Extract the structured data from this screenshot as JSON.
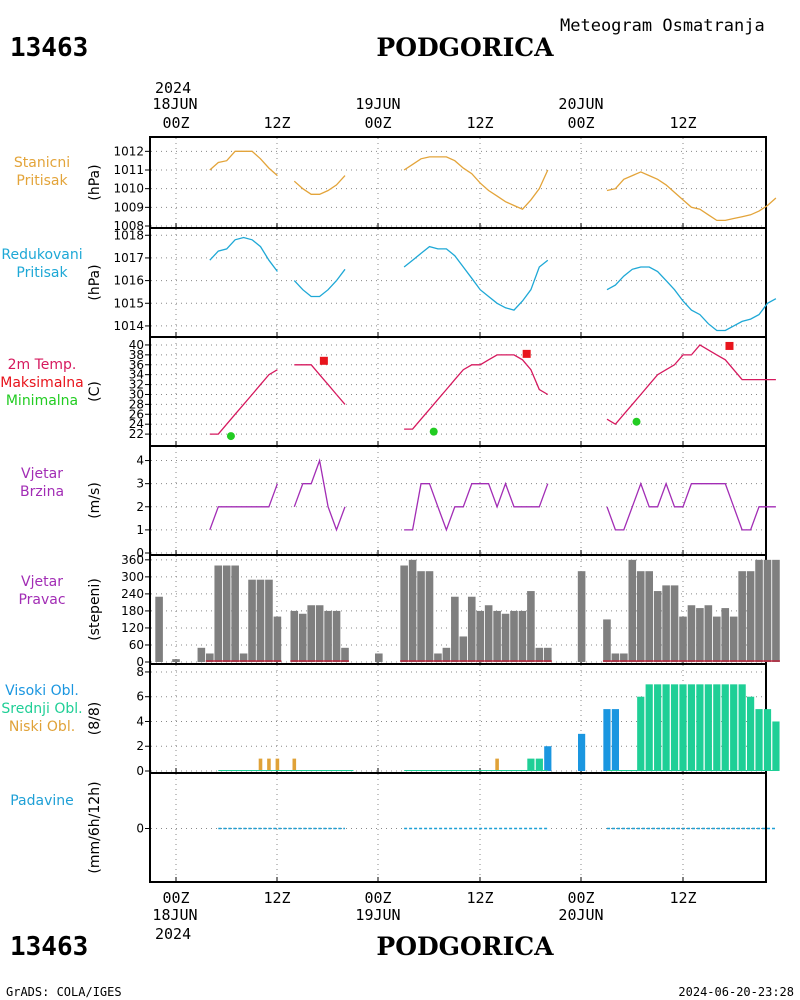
{
  "header": {
    "station_id": "13463",
    "city": "PODGORICA",
    "subtitle": "Meteogram Osmatranja",
    "year": "2024"
  },
  "time_axis": {
    "ticks": [
      "00Z",
      "12Z",
      "00Z",
      "12Z",
      "00Z",
      "12Z"
    ],
    "days": [
      "18JUN",
      "19JUN",
      "20JUN"
    ]
  },
  "footer": {
    "source": "GrADS: COLA/IGES",
    "timestamp": "2024-06-20-23:28"
  },
  "colors": {
    "pressure": "#e3a43a",
    "reduced": "#1ea8d6",
    "temp": "#d6195e",
    "tmax": "#e8141c",
    "tmin": "#22cc22",
    "wind": "#a22db5",
    "bar": "#7f7f7f",
    "cloud_high": "#1a96e0",
    "cloud_mid": "#1fcf96",
    "cloud_low": "#e0a238",
    "precip": "#1fa0d6"
  },
  "chart_data": [
    {
      "id": "station_pressure",
      "type": "line",
      "label_lines": [
        "Stanicni",
        "Pritisak"
      ],
      "unit": "(hPa)",
      "ylim": [
        1008,
        1012.5
      ],
      "yticks": [
        1008,
        1009,
        1010,
        1011,
        1012
      ],
      "segments": [
        {
          "x": [
            4,
            5,
            6,
            7,
            8,
            9,
            10,
            11,
            12
          ],
          "y": [
            1011.0,
            1011.4,
            1011.5,
            1012.0,
            1012.0,
            1012.0,
            1011.6,
            1011.1,
            1010.7
          ]
        },
        {
          "x": [
            14,
            15,
            16,
            17,
            18,
            19,
            20
          ],
          "y": [
            1010.4,
            1010.0,
            1009.7,
            1009.7,
            1009.9,
            1010.2,
            1010.7
          ]
        },
        {
          "x": [
            27,
            28,
            29,
            30,
            31,
            32,
            33,
            34,
            35,
            36,
            37,
            38,
            39,
            40,
            41,
            42,
            43,
            44
          ],
          "y": [
            1011.0,
            1011.3,
            1011.6,
            1011.7,
            1011.7,
            1011.7,
            1011.5,
            1011.1,
            1010.8,
            1010.3,
            1009.9,
            1009.6,
            1009.3,
            1009.1,
            1008.9,
            1009.4,
            1010.0,
            1011.0
          ]
        },
        {
          "x": [
            51,
            52,
            53,
            54,
            55,
            56,
            57,
            58,
            59,
            60,
            61,
            62,
            63,
            64,
            65,
            66,
            67,
            68,
            69,
            70,
            71
          ],
          "y": [
            1009.9,
            1010.0,
            1010.5,
            1010.7,
            1010.9,
            1010.7,
            1010.5,
            1010.2,
            1009.8,
            1009.4,
            1009.0,
            1008.9,
            1008.6,
            1008.3,
            1008.3,
            1008.4,
            1008.5,
            1008.6,
            1008.8,
            1009.1,
            1009.5
          ]
        }
      ]
    },
    {
      "id": "reduced_pressure",
      "type": "line",
      "label_lines": [
        "Redukovani",
        "Pritisak"
      ],
      "unit": "(hPa)",
      "ylim": [
        1013.6,
        1018.1
      ],
      "yticks": [
        1014,
        1015,
        1016,
        1017,
        1018
      ],
      "segments": [
        {
          "x": [
            4,
            5,
            6,
            7,
            8,
            9,
            10,
            11,
            12
          ],
          "y": [
            1016.9,
            1017.3,
            1017.4,
            1017.8,
            1017.9,
            1017.8,
            1017.5,
            1016.9,
            1016.4
          ]
        },
        {
          "x": [
            14,
            15,
            16,
            17,
            18,
            19,
            20
          ],
          "y": [
            1016.0,
            1015.6,
            1015.3,
            1015.3,
            1015.6,
            1016.0,
            1016.5
          ]
        },
        {
          "x": [
            27,
            28,
            29,
            30,
            31,
            32,
            33,
            34,
            35,
            36,
            37,
            38,
            39,
            40,
            41,
            42,
            43,
            44
          ],
          "y": [
            1016.6,
            1016.9,
            1017.2,
            1017.5,
            1017.4,
            1017.4,
            1017.1,
            1016.6,
            1016.1,
            1015.6,
            1015.3,
            1015.0,
            1014.8,
            1014.7,
            1015.1,
            1015.6,
            1016.6,
            1016.9
          ]
        },
        {
          "x": [
            51,
            52,
            53,
            54,
            55,
            56,
            57,
            58,
            59,
            60,
            61,
            62,
            63,
            64,
            65,
            66,
            67,
            68,
            69,
            70,
            71
          ],
          "y": [
            1015.6,
            1015.8,
            1016.2,
            1016.5,
            1016.6,
            1016.6,
            1016.4,
            1016.0,
            1015.6,
            1015.1,
            1014.7,
            1014.5,
            1014.1,
            1013.8,
            1013.8,
            1014.0,
            1014.2,
            1014.3,
            1014.5,
            1015.0,
            1015.2
          ]
        }
      ]
    },
    {
      "id": "temperature",
      "type": "line",
      "label_lines": [
        "2m Temp.",
        "Maksimalna",
        "Minimalna"
      ],
      "unit": "(C)",
      "ylim": [
        20,
        41
      ],
      "yticks": [
        22,
        24,
        26,
        28,
        30,
        32,
        34,
        36,
        38,
        40
      ],
      "segments": [
        {
          "x": [
            4,
            5,
            6,
            7,
            8,
            9,
            10,
            11,
            12
          ],
          "y": [
            22,
            22,
            24,
            26,
            28,
            30,
            32,
            34,
            35
          ]
        },
        {
          "x": [
            14,
            15,
            16,
            17,
            18,
            19,
            20
          ],
          "y": [
            36,
            36,
            36,
            34,
            32,
            30,
            28
          ]
        },
        {
          "x": [
            27,
            28,
            29,
            30,
            31,
            32,
            33,
            34,
            35,
            36,
            37,
            38,
            39,
            40,
            41,
            42,
            43,
            44
          ],
          "y": [
            23,
            23,
            25,
            27,
            29,
            31,
            33,
            35,
            36,
            36,
            37,
            38,
            38,
            38,
            37,
            35,
            31,
            30
          ]
        },
        {
          "x": [
            51,
            52,
            53,
            54,
            55,
            56,
            57,
            58,
            59,
            60,
            61,
            62,
            63,
            64,
            65,
            66,
            67,
            68,
            69,
            70,
            71
          ],
          "y": [
            25,
            24,
            26,
            28,
            30,
            32,
            34,
            35,
            36,
            38,
            38,
            40,
            39,
            38,
            37,
            35,
            33,
            33,
            33,
            33,
            33
          ]
        }
      ],
      "max_points": [
        {
          "x": 17.5,
          "y": 36.8
        },
        {
          "x": 41.5,
          "y": 38.2
        },
        {
          "x": 65.5,
          "y": 39.8
        }
      ],
      "min_points": [
        {
          "x": 6.5,
          "y": 21.6
        },
        {
          "x": 30.5,
          "y": 22.5
        },
        {
          "x": 54.5,
          "y": 24.5
        }
      ]
    },
    {
      "id": "wind_speed",
      "type": "line",
      "label_lines": [
        "Vjetar",
        "Brzina"
      ],
      "unit": "(m/s)",
      "ylim": [
        0,
        4.5
      ],
      "yticks": [
        0,
        1,
        2,
        3,
        4
      ],
      "segments": [
        {
          "x": [
            4,
            5,
            6,
            7,
            8,
            9,
            10,
            11,
            12
          ],
          "y": [
            1,
            2,
            2,
            2,
            2,
            2,
            2,
            2,
            3
          ]
        },
        {
          "x": [
            14,
            15,
            16,
            17,
            18,
            19,
            20
          ],
          "y": [
            2,
            3,
            3,
            4,
            2,
            1,
            2
          ]
        },
        {
          "x": [
            27,
            28,
            29,
            30,
            31,
            32,
            33,
            34,
            35,
            36,
            37,
            38,
            39,
            40,
            41,
            42,
            43,
            44
          ],
          "y": [
            1,
            1,
            3,
            3,
            2,
            1,
            2,
            2,
            3,
            3,
            3,
            2,
            3,
            2,
            2,
            2,
            2,
            3
          ]
        },
        {
          "x": [
            51,
            52,
            53,
            54,
            55,
            56,
            57,
            58,
            59,
            60,
            61,
            62,
            63,
            64,
            65,
            66,
            67,
            68,
            69,
            70,
            71
          ],
          "y": [
            2,
            1,
            1,
            2,
            3,
            2,
            2,
            3,
            2,
            2,
            3,
            3,
            3,
            3,
            3,
            2,
            1,
            1,
            2,
            2,
            2
          ]
        }
      ]
    },
    {
      "id": "wind_direction",
      "type": "bar",
      "label_lines": [
        "Vjetar",
        "Pravac"
      ],
      "unit": "(stepeni)",
      "ylim": [
        0,
        370
      ],
      "yticks": [
        0,
        60,
        120,
        180,
        240,
        300,
        360
      ],
      "x": [
        -2,
        0,
        3,
        4,
        5,
        6,
        7,
        8,
        9,
        10,
        11,
        12,
        14,
        15,
        16,
        17,
        18,
        19,
        20,
        24,
        27,
        28,
        29,
        30,
        31,
        32,
        33,
        34,
        35,
        36,
        37,
        38,
        39,
        40,
        41,
        42,
        43,
        44,
        48,
        51,
        52,
        53,
        54,
        55,
        56,
        57,
        58,
        59,
        60,
        61,
        62,
        63,
        64,
        65,
        66,
        67,
        68,
        69,
        70,
        71
      ],
      "values": [
        230,
        10,
        50,
        30,
        340,
        340,
        340,
        30,
        290,
        290,
        290,
        160,
        180,
        170,
        200,
        200,
        180,
        180,
        50,
        30,
        340,
        360,
        320,
        320,
        30,
        50,
        230,
        90,
        230,
        180,
        200,
        180,
        170,
        180,
        180,
        250,
        50,
        50,
        320,
        150,
        30,
        30,
        360,
        320,
        320,
        250,
        270,
        270,
        160,
        200,
        190,
        200,
        160,
        190,
        160,
        320,
        320,
        360,
        360,
        360
      ]
    },
    {
      "id": "clouds",
      "type": "bar",
      "label_lines": [
        "Visoki Obl.",
        "Srednji Obl.",
        "Niski Obl."
      ],
      "unit": "(8/8)",
      "ylim": [
        0,
        8.4
      ],
      "yticks": [
        0,
        2,
        4,
        6,
        8
      ],
      "series": [
        {
          "layer": "low",
          "x": [
            10,
            11,
            12,
            14,
            38
          ],
          "values": [
            1,
            1,
            1,
            1,
            1
          ]
        },
        {
          "layer": "mid",
          "x": [
            42,
            43,
            55,
            56,
            57,
            58,
            59,
            60,
            61,
            62,
            63,
            64,
            65,
            66,
            67,
            68,
            69,
            70,
            71
          ],
          "values": [
            1,
            1,
            6,
            7,
            7,
            7,
            7,
            7,
            7,
            7,
            7,
            7,
            7,
            7,
            7,
            6,
            5,
            5,
            4
          ]
        },
        {
          "layer": "high",
          "x": [
            44,
            48,
            51,
            52
          ],
          "values": [
            2,
            3,
            5,
            5
          ]
        }
      ]
    },
    {
      "id": "precipitation",
      "type": "line",
      "label_lines": [
        "Padavine"
      ],
      "unit": "(mm/6h/12h)",
      "ylim": [
        -0.5,
        0.5
      ],
      "yticks": [
        0
      ],
      "segments": [
        {
          "x": [
            5,
            20
          ],
          "y": [
            0,
            0
          ]
        },
        {
          "x": [
            27,
            44
          ],
          "y": [
            0,
            0
          ]
        },
        {
          "x": [
            51,
            71
          ],
          "y": [
            0,
            0
          ]
        }
      ]
    }
  ]
}
